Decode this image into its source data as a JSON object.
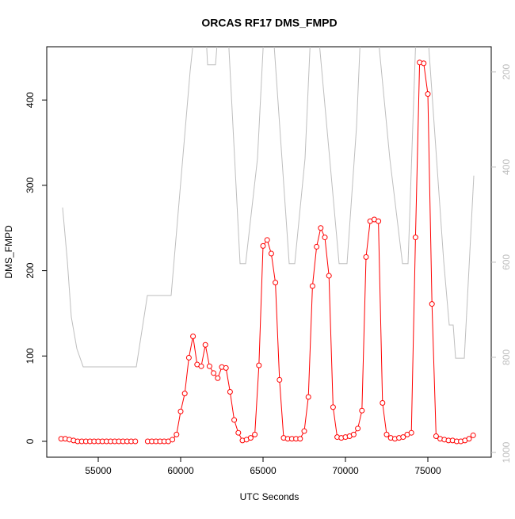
{
  "chart_data": {
    "type": "line",
    "title": "ORCAS RF17 DMS_FMPD",
    "x_label": "UTC Seconds",
    "y_label": "DMS_FMPD",
    "xlim": [
      51875,
      78846
    ],
    "ylim": [
      -18.6,
      462.4
    ],
    "y2lim": [
      1010,
      147
    ],
    "xticks": [
      55000,
      60000,
      65000,
      70000,
      75000
    ],
    "yticks": [
      0,
      100,
      200,
      300,
      400
    ],
    "y2ticks": [
      200,
      400,
      600,
      800,
      1000
    ],
    "series": [
      {
        "color": "#ff0000",
        "markers": "circle",
        "x": [
          52750,
          53000,
          53250,
          53500,
          53750,
          54000,
          54250,
          54500,
          54750,
          55000,
          55250,
          55500,
          55750,
          56000,
          56250,
          56500,
          56750,
          57000,
          57250,
          57500,
          57750,
          58000,
          58250,
          58500,
          58750,
          59000,
          59250,
          59500,
          59750,
          60000,
          60250,
          60500,
          60750,
          61000,
          61250,
          61500,
          61750,
          62000,
          62250,
          62500,
          62750,
          63000,
          63250,
          63500,
          63750,
          64000,
          64250,
          64500,
          64750,
          65000,
          65250,
          65500,
          65750,
          66000,
          66250,
          66500,
          66750,
          67000,
          67250,
          67500,
          67750,
          68000,
          68250,
          68500,
          68750,
          69000,
          69250,
          69500,
          69750,
          70000,
          70250,
          70500,
          70750,
          71000,
          71250,
          71500,
          71750,
          72000,
          72250,
          72500,
          72750,
          73000,
          73250,
          73500,
          73750,
          74000,
          74250,
          74500,
          74750,
          75000,
          75250,
          75500,
          75750,
          76000,
          76250,
          76500,
          76750,
          77000,
          77250,
          77500,
          77750
        ],
        "values": [
          3,
          3,
          2,
          1,
          0,
          0,
          0,
          0,
          0,
          0,
          0,
          0,
          0,
          0,
          0,
          0,
          0,
          0,
          0,
          null,
          null,
          0,
          0,
          0,
          0,
          0,
          0,
          2,
          8,
          35,
          56,
          98,
          123,
          90,
          88,
          113,
          88,
          80,
          74,
          87,
          86,
          58,
          25,
          10,
          1,
          2,
          4,
          8,
          89,
          229,
          236,
          220,
          186,
          72,
          4,
          3,
          3,
          3,
          3,
          12,
          52,
          182,
          228,
          250,
          239,
          194,
          40,
          5,
          4,
          5,
          6,
          8,
          15,
          36,
          216,
          258,
          260,
          258,
          45,
          8,
          4,
          3,
          4,
          5,
          8,
          10,
          239,
          444,
          443,
          407,
          161,
          6,
          3,
          2,
          1,
          1,
          0,
          0,
          1,
          3,
          7
        ]
      },
      {
        "color": "#bebebe",
        "axis": "y2",
        "x": [
          52837,
          53125,
          53365,
          53702,
          54087,
          57308,
          57981,
          59423,
          60577,
          60817,
          61538,
          61635,
          62115,
          62260,
          62885,
          63606,
          63942,
          64663,
          65048,
          65625,
          66587,
          66923,
          67548,
          67885,
          68365,
          69615,
          70096,
          70673,
          70913,
          71971,
          72692,
          73462,
          73798,
          74279,
          75000,
          75962,
          76298,
          76538,
          76683,
          77212,
          77789
        ],
        "values": [
          485,
          598,
          715,
          782,
          820,
          820,
          670,
          670,
          198,
          120,
          120,
          185,
          185,
          120,
          120,
          603,
          603,
          382,
          120,
          120,
          603,
          603,
          382,
          120,
          120,
          603,
          603,
          315,
          120,
          120,
          382,
          603,
          603,
          120,
          120,
          598,
          732,
          732,
          802,
          802,
          418
        ]
      }
    ]
  }
}
